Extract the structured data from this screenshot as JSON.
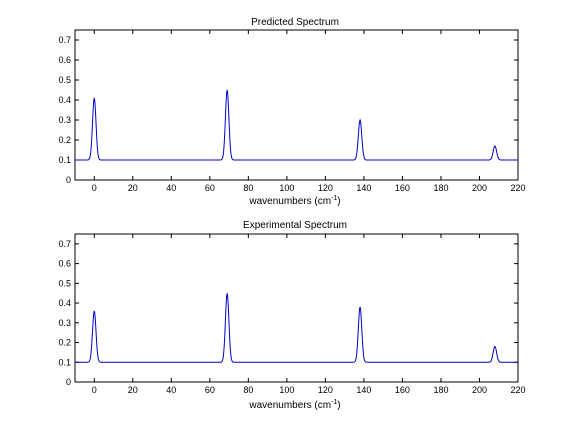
{
  "chart_data": [
    {
      "type": "line",
      "title": "Predicted Spectrum",
      "xlabel": "wavenumbers (cm",
      "xlabel_sup": "-1",
      "xlabel_end": ")",
      "ylabel": "",
      "xlim": [
        -10,
        220
      ],
      "ylim": [
        0,
        0.75
      ],
      "xticks": [
        0,
        20,
        40,
        60,
        80,
        100,
        120,
        140,
        160,
        180,
        200,
        220
      ],
      "yticks": [
        0,
        0.1,
        0.2,
        0.3,
        0.4,
        0.5,
        0.6,
        0.7
      ],
      "grid": false,
      "baseline": 0.1,
      "peaks": [
        {
          "x": 0,
          "y": 0.41
        },
        {
          "x": 69,
          "y": 0.45
        },
        {
          "x": 138,
          "y": 0.3
        },
        {
          "x": 208,
          "y": 0.17
        }
      ]
    },
    {
      "type": "line",
      "title": "Experimental Spectrum",
      "xlabel": "wavenumbers (cm",
      "xlabel_sup": "-1",
      "xlabel_end": ")",
      "ylabel": "",
      "xlim": [
        -10,
        220
      ],
      "ylim": [
        0,
        0.75
      ],
      "xticks": [
        0,
        20,
        40,
        60,
        80,
        100,
        120,
        140,
        160,
        180,
        200,
        220
      ],
      "yticks": [
        0,
        0.1,
        0.2,
        0.3,
        0.4,
        0.5,
        0.6,
        0.7
      ],
      "grid": false,
      "baseline": 0.1,
      "peaks": [
        {
          "x": 0,
          "y": 0.36
        },
        {
          "x": 69,
          "y": 0.45
        },
        {
          "x": 138,
          "y": 0.38
        },
        {
          "x": 208,
          "y": 0.18
        }
      ]
    }
  ],
  "colors": {
    "line": "#0000cc",
    "axes": "#000000",
    "background": "#ffffff"
  }
}
